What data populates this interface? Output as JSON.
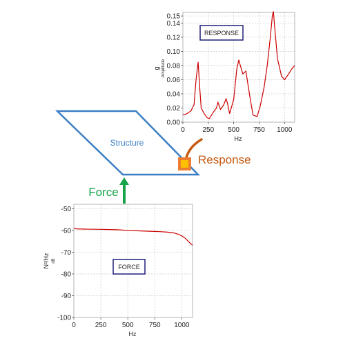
{
  "diagram": {
    "structure_label": "Structure",
    "force_label": "Force",
    "response_label": "Response",
    "colors": {
      "structure": "#3b7fc4",
      "force": "#17a34a",
      "response_text": "#c55a11",
      "response_box_outer": "#ed7d31",
      "response_box_inner": "#ffc000",
      "curve": "#cc0000",
      "label_box_border": "#1f1f7a"
    }
  },
  "chart_data": [
    {
      "type": "line",
      "label_box": "RESPONSE",
      "xlabel": "Hz",
      "ylabel": "g",
      "ylabel_sub": "Amplitude",
      "xlim": [
        0,
        1100
      ],
      "ylim": [
        0,
        0.155
      ],
      "xticks": [
        0,
        250,
        500,
        750,
        1000
      ],
      "yticks": [
        "0.00",
        "0.02",
        "0.04",
        "0.06",
        "0.08",
        "0.10",
        "0.12",
        "0.14",
        "0.15"
      ],
      "grid": true,
      "x": [
        0,
        40,
        80,
        110,
        130,
        150,
        165,
        180,
        210,
        240,
        260,
        290,
        330,
        345,
        370,
        400,
        425,
        440,
        460,
        500,
        530,
        550,
        565,
        590,
        620,
        660,
        690,
        730,
        760,
        800,
        830,
        860,
        880,
        890,
        900,
        930,
        970,
        1000,
        1040,
        1070,
        1100
      ],
      "y": [
        0.01,
        0.012,
        0.016,
        0.025,
        0.06,
        0.085,
        0.05,
        0.02,
        0.012,
        0.006,
        0.005,
        0.012,
        0.02,
        0.028,
        0.018,
        0.024,
        0.033,
        0.026,
        0.012,
        0.032,
        0.075,
        0.088,
        0.08,
        0.068,
        0.072,
        0.035,
        0.01,
        0.008,
        0.022,
        0.05,
        0.08,
        0.12,
        0.15,
        0.158,
        0.14,
        0.09,
        0.065,
        0.06,
        0.068,
        0.075,
        0.08
      ]
    },
    {
      "type": "line",
      "label_box": "FORCE",
      "xlabel": "Hz",
      "ylabel": "N²/Hz",
      "ylabel_sub": "dB",
      "xlim": [
        0,
        1100
      ],
      "ylim": [
        -100,
        -48
      ],
      "xticks": [
        0,
        250,
        500,
        750,
        1000
      ],
      "yticks": [
        -50,
        -60,
        -70,
        -80,
        -90,
        -100
      ],
      "grid": true,
      "x": [
        0,
        20,
        100,
        250,
        400,
        500,
        600,
        700,
        800,
        870,
        930,
        970,
        1000,
        1030,
        1060,
        1080,
        1100
      ],
      "y": [
        -59,
        -59.3,
        -59.4,
        -59.5,
        -59.7,
        -60,
        -60.2,
        -60.4,
        -60.6,
        -60.8,
        -61.2,
        -61.8,
        -62.5,
        -63.5,
        -65,
        -66,
        -66.8
      ]
    }
  ]
}
